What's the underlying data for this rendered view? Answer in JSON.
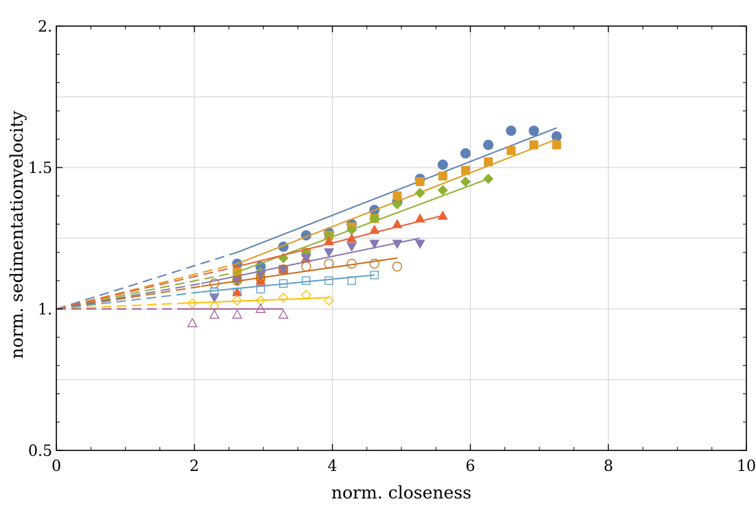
{
  "chart_data": {
    "type": "scatter",
    "title": "",
    "xlabel": "norm. closeness",
    "ylabel": "norm. sedimentationvelocity",
    "xlim": [
      0,
      10
    ],
    "ylim": [
      0.5,
      2.0
    ],
    "x_ticks": [
      0,
      2,
      4,
      6,
      8,
      10
    ],
    "x_tick_labels": [
      "0",
      "2",
      "4",
      "6",
      "8",
      "10"
    ],
    "y_ticks": [
      0.5,
      1.0,
      1.5,
      2.0
    ],
    "y_tick_labels": [
      "0.5",
      "1.",
      "1.5",
      "2."
    ],
    "grid": true,
    "legend": "none",
    "series": [
      {
        "color": "#5E81B5",
        "marker": "circle",
        "filled": true,
        "x": [
          2.62,
          2.96,
          3.29,
          3.62,
          3.95,
          4.28,
          4.61,
          4.94,
          5.27,
          5.6,
          5.93,
          6.26,
          6.59,
          6.92,
          7.25
        ],
        "y": [
          1.16,
          1.15,
          1.22,
          1.26,
          1.27,
          1.3,
          1.35,
          1.38,
          1.46,
          1.51,
          1.55,
          1.58,
          1.63,
          1.63,
          1.61
        ],
        "fit_start": [
          0.0,
          1.0
        ],
        "fit_from": [
          2.62,
          1.2
        ],
        "fit_to": [
          7.25,
          1.64
        ]
      },
      {
        "color": "#E19C24",
        "marker": "square",
        "filled": true,
        "x": [
          2.62,
          2.96,
          3.29,
          3.62,
          3.95,
          4.28,
          4.61,
          4.94,
          5.27,
          5.6,
          5.93,
          6.26,
          6.59,
          6.92,
          7.25
        ],
        "y": [
          1.13,
          1.11,
          1.14,
          1.2,
          1.26,
          1.29,
          1.32,
          1.4,
          1.45,
          1.47,
          1.49,
          1.52,
          1.56,
          1.58,
          1.58
        ],
        "fit_start": [
          0.0,
          1.0
        ],
        "fit_from": [
          2.62,
          1.16
        ],
        "fit_to": [
          7.25,
          1.6
        ]
      },
      {
        "color": "#8FB032",
        "marker": "diamond",
        "filled": true,
        "x": [
          2.62,
          2.96,
          3.29,
          3.62,
          3.95,
          4.28,
          4.61,
          4.94,
          5.27,
          5.6,
          5.93,
          6.26
        ],
        "y": [
          1.1,
          1.13,
          1.18,
          1.2,
          1.26,
          1.28,
          1.32,
          1.37,
          1.41,
          1.42,
          1.45,
          1.46
        ],
        "fit_start": [
          0.0,
          1.0
        ],
        "fit_from": [
          2.62,
          1.13
        ],
        "fit_to": [
          6.26,
          1.46
        ]
      },
      {
        "color": "#EB6235",
        "marker": "triangle-up",
        "filled": true,
        "x": [
          2.62,
          2.96,
          3.29,
          3.62,
          3.95,
          4.28,
          4.61,
          4.94,
          5.27,
          5.6
        ],
        "y": [
          1.06,
          1.1,
          1.14,
          1.18,
          1.24,
          1.25,
          1.28,
          1.3,
          1.32,
          1.33
        ],
        "fit_start": [
          0.0,
          1.0
        ],
        "fit_from": [
          2.62,
          1.15
        ],
        "fit_to": [
          5.6,
          1.33
        ]
      },
      {
        "color": "#8778B3",
        "marker": "triangle-down",
        "filled": true,
        "x": [
          2.29,
          2.62,
          2.96,
          3.29,
          3.62,
          3.95,
          4.28,
          4.61,
          4.94,
          5.27
        ],
        "y": [
          1.04,
          1.1,
          1.12,
          1.14,
          1.18,
          1.2,
          1.22,
          1.23,
          1.23,
          1.23
        ],
        "fit_start": [
          0.0,
          1.0
        ],
        "fit_from": [
          2.1,
          1.09
        ],
        "fit_to": [
          5.27,
          1.25
        ]
      },
      {
        "color": "#C56E1A",
        "marker": "circle",
        "filled": false,
        "x": [
          2.29,
          2.62,
          2.96,
          3.29,
          3.62,
          3.95,
          4.28,
          4.61,
          4.94
        ],
        "y": [
          1.09,
          1.1,
          1.11,
          1.14,
          1.15,
          1.16,
          1.16,
          1.16,
          1.15
        ],
        "fit_start": [
          0.0,
          1.0
        ],
        "fit_from": [
          2.1,
          1.08
        ],
        "fit_to": [
          4.94,
          1.18
        ]
      },
      {
        "color": "#5D9EC7",
        "marker": "square",
        "filled": false,
        "x": [
          2.29,
          2.62,
          2.96,
          3.29,
          3.62,
          3.95,
          4.28,
          4.61
        ],
        "y": [
          1.06,
          1.06,
          1.07,
          1.09,
          1.1,
          1.1,
          1.1,
          1.12
        ],
        "fit_start": [
          0.0,
          1.0
        ],
        "fit_from": [
          2.1,
          1.06
        ],
        "fit_to": [
          4.61,
          1.12
        ]
      },
      {
        "color": "#FFBF00",
        "marker": "diamond",
        "filled": false,
        "x": [
          1.97,
          2.29,
          2.62,
          2.96,
          3.29,
          3.62,
          3.95
        ],
        "y": [
          1.02,
          1.01,
          1.03,
          1.03,
          1.04,
          1.05,
          1.03
        ],
        "fit_start": [
          0.0,
          1.0
        ],
        "fit_from": [
          1.8,
          1.02
        ],
        "fit_to": [
          3.95,
          1.04
        ]
      },
      {
        "color": "#A5609D",
        "marker": "triangle-up",
        "filled": false,
        "x": [
          1.97,
          2.29,
          2.62,
          2.96,
          3.29
        ],
        "y": [
          0.95,
          0.98,
          0.98,
          1.0,
          0.98
        ],
        "fit_start": [
          0.0,
          1.0
        ],
        "fit_from": [
          1.8,
          1.0
        ],
        "fit_to": [
          3.29,
          1.0
        ]
      }
    ]
  }
}
